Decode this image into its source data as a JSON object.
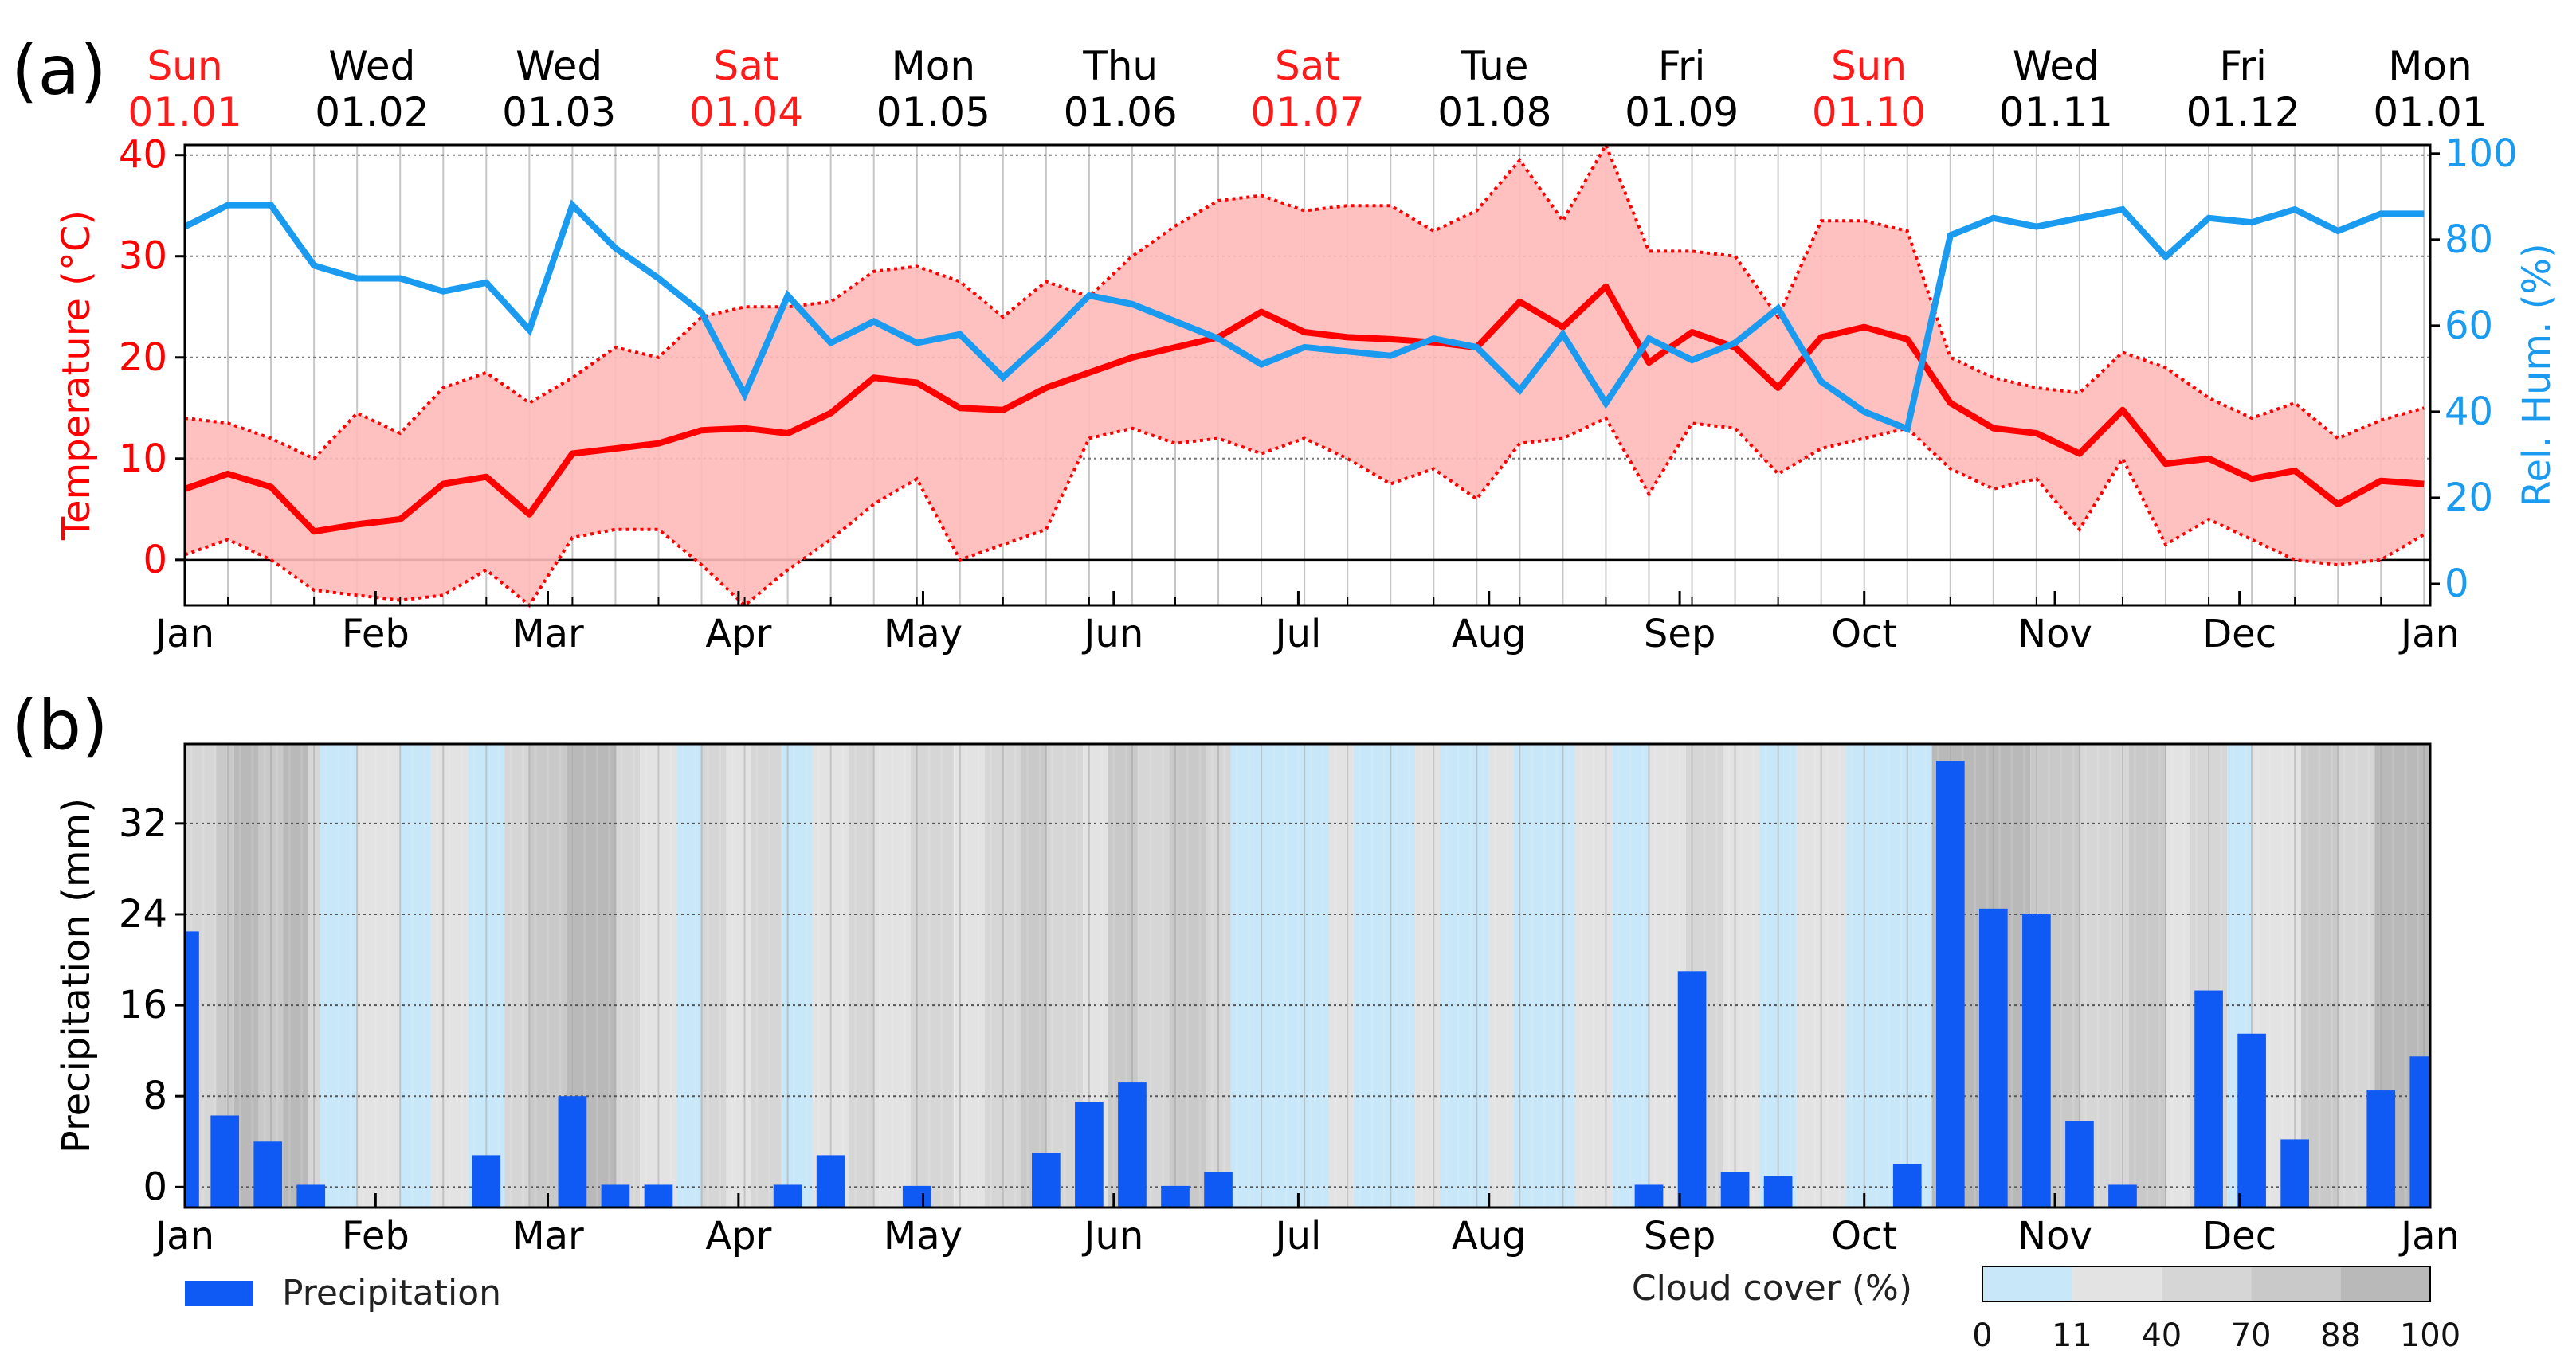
{
  "chart_data": [
    {
      "id": "a",
      "panel_label": "(a)",
      "type": "line",
      "title": "",
      "top_axis": [
        {
          "day": "Sun",
          "date": "01.01",
          "weekend": true
        },
        {
          "day": "Wed",
          "date": "01.02",
          "weekend": false
        },
        {
          "day": "Wed",
          "date": "01.03",
          "weekend": false
        },
        {
          "day": "Sat",
          "date": "01.04",
          "weekend": true
        },
        {
          "day": "Mon",
          "date": "01.05",
          "weekend": false
        },
        {
          "day": "Thu",
          "date": "01.06",
          "weekend": false
        },
        {
          "day": "Sat",
          "date": "01.07",
          "weekend": true
        },
        {
          "day": "Tue",
          "date": "01.08",
          "weekend": false
        },
        {
          "day": "Fri",
          "date": "01.09",
          "weekend": false
        },
        {
          "day": "Sun",
          "date": "01.10",
          "weekend": true
        },
        {
          "day": "Wed",
          "date": "01.11",
          "weekend": false
        },
        {
          "day": "Fri",
          "date": "01.12",
          "weekend": false
        },
        {
          "day": "Mon",
          "date": "01.01",
          "weekend": false
        }
      ],
      "month_labels": [
        "Jan",
        "Feb",
        "Mar",
        "Apr",
        "May",
        "Jun",
        "Jul",
        "Aug",
        "Sep",
        "Oct",
        "Nov",
        "Dec",
        "Jan"
      ],
      "month_positions": [
        0,
        31,
        59,
        90,
        120,
        151,
        181,
        212,
        243,
        273,
        304,
        334,
        365
      ],
      "xlim": [
        0,
        365
      ],
      "ylabel": "Temperature (°C)",
      "ylim": [
        -4.5,
        41
      ],
      "yticks": [
        0,
        10,
        20,
        30,
        40
      ],
      "ylabel_right": "Rel. Hum. (%)",
      "ylim_right": [
        -5,
        102
      ],
      "yticks_right": [
        0,
        20,
        40,
        60,
        80,
        100
      ],
      "x": [
        0,
        7,
        14,
        21,
        28,
        35,
        42,
        49,
        56,
        63,
        70,
        77,
        84,
        91,
        98,
        105,
        112,
        119,
        126,
        133,
        140,
        147,
        154,
        161,
        168,
        175,
        182,
        189,
        196,
        203,
        210,
        217,
        224,
        231,
        238,
        245,
        252,
        259,
        266,
        273,
        280,
        287,
        294,
        301,
        308,
        315,
        322,
        329,
        336,
        343,
        350,
        357,
        364
      ],
      "series": [
        {
          "name": "Temperature mean",
          "color": "#ff0000",
          "values": [
            7,
            8.5,
            7.2,
            2.8,
            3.5,
            4,
            7.5,
            8.2,
            4.5,
            10.5,
            11,
            11.5,
            12.8,
            13,
            12.5,
            14.5,
            18,
            17.5,
            15,
            14.8,
            17,
            18.5,
            20,
            21,
            22,
            24.5,
            22.5,
            22,
            21.8,
            21.5,
            21,
            25.5,
            23,
            27,
            19.5,
            22.5,
            21,
            17,
            22,
            23,
            21.8,
            15.5,
            13,
            12.5,
            10.5,
            14.8,
            9.5,
            10,
            8,
            8.8,
            5.5,
            7.8,
            7.5
          ]
        },
        {
          "name": "Temperature max",
          "color": "#ff0000",
          "values": [
            14,
            13.5,
            12,
            10,
            14.5,
            12.5,
            17,
            18.5,
            15.5,
            18,
            21,
            20,
            24,
            25,
            25,
            25.5,
            28.5,
            29,
            27.5,
            24,
            27.5,
            26,
            30,
            33,
            35.5,
            36,
            34.5,
            35,
            35,
            32.5,
            34.5,
            39.5,
            33.5,
            41,
            30.5,
            30.5,
            30,
            24,
            33.5,
            33.5,
            32.5,
            20,
            18,
            17,
            16.5,
            20.5,
            19,
            16,
            14,
            15.5,
            12,
            13.8,
            15
          ]
        },
        {
          "name": "Temperature min",
          "color": "#ff0000",
          "values": [
            0.5,
            2,
            0,
            -3,
            -3.5,
            -4,
            -3.5,
            -1,
            -4.5,
            2.2,
            3,
            3,
            -0.5,
            -4.5,
            -1,
            2,
            5.5,
            8,
            0,
            1.5,
            3,
            12,
            13,
            11.5,
            12,
            10.5,
            12,
            10,
            7.5,
            9,
            6,
            11.5,
            12,
            14,
            6.5,
            13.5,
            13,
            8.5,
            11,
            12,
            13,
            9,
            7,
            8,
            3,
            10,
            1.5,
            4,
            2,
            0,
            -0.5,
            0,
            2.5
          ]
        },
        {
          "name": "Rel. Hum.",
          "color": "#1a9bf0",
          "axis": "right",
          "values": [
            83,
            88,
            88,
            74,
            71,
            71,
            68,
            70,
            59,
            88,
            78,
            71,
            63,
            44,
            67,
            56,
            61,
            56,
            58,
            48,
            57,
            67,
            65,
            61,
            57,
            51,
            55,
            54,
            53,
            57,
            55,
            45,
            58,
            42,
            57,
            52,
            56,
            64,
            47,
            40,
            36,
            81,
            85,
            83,
            85,
            87,
            76,
            85,
            84,
            87,
            82,
            86,
            86
          ]
        }
      ]
    },
    {
      "id": "b",
      "panel_label": "(b)",
      "type": "bar",
      "ylabel": "Precipitation (mm)",
      "ylim": [
        -1.8,
        39
      ],
      "yticks": [
        0,
        8,
        16,
        24,
        32
      ],
      "xlim": [
        0,
        365
      ],
      "month_labels": [
        "Jan",
        "Feb",
        "Mar",
        "Apr",
        "May",
        "Jun",
        "Jul",
        "Aug",
        "Sep",
        "Oct",
        "Nov",
        "Dec",
        "Jan"
      ],
      "month_positions": [
        0,
        31,
        59,
        90,
        120,
        151,
        181,
        212,
        243,
        273,
        304,
        334,
        365
      ],
      "series": [
        {
          "name": "Precipitation",
          "color": "#0f5af5"
        }
      ],
      "bars": [
        {
          "x": 0,
          "value": 22.5
        },
        {
          "x": 6.5,
          "value": 6.3
        },
        {
          "x": 13.5,
          "value": 4
        },
        {
          "x": 20.5,
          "value": 0.2
        },
        {
          "x": 49,
          "value": 2.8
        },
        {
          "x": 63,
          "value": 8
        },
        {
          "x": 70,
          "value": 0.2
        },
        {
          "x": 77,
          "value": 0.2
        },
        {
          "x": 98,
          "value": 0.2
        },
        {
          "x": 105,
          "value": 2.8
        },
        {
          "x": 119,
          "value": 0.1
        },
        {
          "x": 140,
          "value": 3
        },
        {
          "x": 147,
          "value": 7.5
        },
        {
          "x": 154,
          "value": 9.2
        },
        {
          "x": 161,
          "value": 0.1
        },
        {
          "x": 168,
          "value": 1.3
        },
        {
          "x": 238,
          "value": 0.2
        },
        {
          "x": 245,
          "value": 19
        },
        {
          "x": 252,
          "value": 1.3
        },
        {
          "x": 259,
          "value": 1
        },
        {
          "x": 280,
          "value": 2
        },
        {
          "x": 287,
          "value": 37.5
        },
        {
          "x": 294,
          "value": 24.5
        },
        {
          "x": 301,
          "value": 24
        },
        {
          "x": 308,
          "value": 5.8
        },
        {
          "x": 315,
          "value": 0.2
        },
        {
          "x": 329,
          "value": 17.3
        },
        {
          "x": 336,
          "value": 13.5
        },
        {
          "x": 343,
          "value": 4.2
        },
        {
          "x": 357,
          "value": 8.5
        },
        {
          "x": 364,
          "value": 11.5
        }
      ],
      "cloud_cover": {
        "label": "Cloud cover (%)",
        "class_ticks": [
          "0",
          "11",
          "40",
          "70",
          "88",
          "100"
        ],
        "class_colors": [
          "#c8e7f8",
          "#e3e3e3",
          "#d6d6d6",
          "#c9c9c9",
          "#b9b9b9"
        ],
        "bands": [
          {
            "start": 0,
            "end": 5,
            "class": 2
          },
          {
            "start": 5,
            "end": 8,
            "class": 3
          },
          {
            "start": 8,
            "end": 12,
            "class": 4
          },
          {
            "start": 12,
            "end": 16,
            "class": 3
          },
          {
            "start": 16,
            "end": 20,
            "class": 4
          },
          {
            "start": 20,
            "end": 22,
            "class": 2
          },
          {
            "start": 22,
            "end": 28,
            "class": 0
          },
          {
            "start": 28,
            "end": 35,
            "class": 1
          },
          {
            "start": 35,
            "end": 40,
            "class": 0
          },
          {
            "start": 40,
            "end": 46,
            "class": 1
          },
          {
            "start": 46,
            "end": 52,
            "class": 0
          },
          {
            "start": 52,
            "end": 56,
            "class": 2
          },
          {
            "start": 56,
            "end": 62,
            "class": 3
          },
          {
            "start": 62,
            "end": 70,
            "class": 4
          },
          {
            "start": 70,
            "end": 74,
            "class": 2
          },
          {
            "start": 74,
            "end": 80,
            "class": 1
          },
          {
            "start": 80,
            "end": 84,
            "class": 0
          },
          {
            "start": 84,
            "end": 88,
            "class": 2
          },
          {
            "start": 88,
            "end": 92,
            "class": 1
          },
          {
            "start": 92,
            "end": 97,
            "class": 2
          },
          {
            "start": 97,
            "end": 102,
            "class": 0
          },
          {
            "start": 102,
            "end": 108,
            "class": 1
          },
          {
            "start": 108,
            "end": 112,
            "class": 2
          },
          {
            "start": 112,
            "end": 118,
            "class": 1
          },
          {
            "start": 118,
            "end": 125,
            "class": 2
          },
          {
            "start": 125,
            "end": 130,
            "class": 1
          },
          {
            "start": 130,
            "end": 136,
            "class": 2
          },
          {
            "start": 136,
            "end": 140,
            "class": 3
          },
          {
            "start": 140,
            "end": 146,
            "class": 2
          },
          {
            "start": 146,
            "end": 150,
            "class": 1
          },
          {
            "start": 150,
            "end": 155,
            "class": 3
          },
          {
            "start": 155,
            "end": 160,
            "class": 2
          },
          {
            "start": 160,
            "end": 166,
            "class": 3
          },
          {
            "start": 166,
            "end": 170,
            "class": 2
          },
          {
            "start": 170,
            "end": 186,
            "class": 0
          },
          {
            "start": 186,
            "end": 190,
            "class": 1
          },
          {
            "start": 190,
            "end": 200,
            "class": 0
          },
          {
            "start": 200,
            "end": 204,
            "class": 1
          },
          {
            "start": 204,
            "end": 212,
            "class": 0
          },
          {
            "start": 212,
            "end": 216,
            "class": 1
          },
          {
            "start": 216,
            "end": 226,
            "class": 0
          },
          {
            "start": 226,
            "end": 232,
            "class": 1
          },
          {
            "start": 232,
            "end": 238,
            "class": 0
          },
          {
            "start": 238,
            "end": 244,
            "class": 1
          },
          {
            "start": 244,
            "end": 250,
            "class": 2
          },
          {
            "start": 250,
            "end": 256,
            "class": 1
          },
          {
            "start": 256,
            "end": 262,
            "class": 0
          },
          {
            "start": 262,
            "end": 270,
            "class": 1
          },
          {
            "start": 270,
            "end": 284,
            "class": 0
          },
          {
            "start": 284,
            "end": 300,
            "class": 4
          },
          {
            "start": 300,
            "end": 308,
            "class": 3
          },
          {
            "start": 308,
            "end": 316,
            "class": 2
          },
          {
            "start": 316,
            "end": 322,
            "class": 3
          },
          {
            "start": 322,
            "end": 326,
            "class": 1
          },
          {
            "start": 326,
            "end": 332,
            "class": 2
          },
          {
            "start": 332,
            "end": 336,
            "class": 0
          },
          {
            "start": 336,
            "end": 344,
            "class": 1
          },
          {
            "start": 344,
            "end": 350,
            "class": 3
          },
          {
            "start": 350,
            "end": 356,
            "class": 2
          },
          {
            "start": 356,
            "end": 365,
            "class": 4
          }
        ]
      }
    }
  ]
}
